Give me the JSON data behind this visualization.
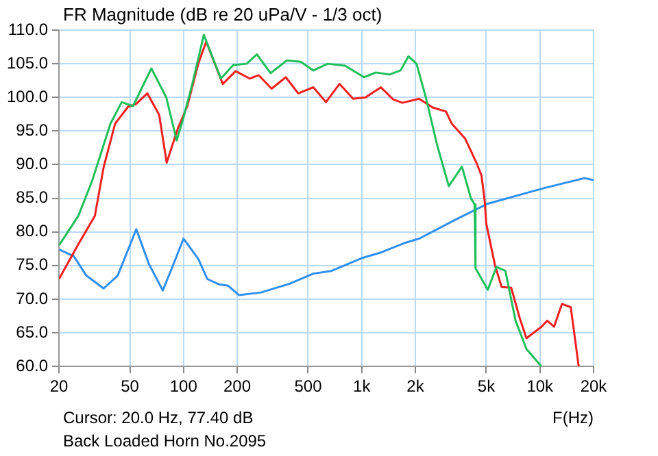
{
  "chart_data": {
    "type": "line",
    "title": "FR Magnitude (dB re 20 uPa/V - 1/3 oct)",
    "xlabel": "F(Hz)",
    "annotations": [
      "Cursor: 20.0 Hz, 77.40 dB",
      "Back Loaded Horn No.2095"
    ],
    "log": "x",
    "grid": true,
    "legend": false,
    "marker": "none",
    "line_style": "solid",
    "xlim": [
      20,
      20000
    ],
    "xticks": [
      20,
      50,
      100,
      200,
      500,
      {
        "value": 1000,
        "label": "1k"
      },
      {
        "value": 2000,
        "label": "2k"
      },
      {
        "value": 5000,
        "label": "5k"
      },
      {
        "value": 10000,
        "label": "10k"
      },
      {
        "value": 20000,
        "label": "20k"
      }
    ],
    "ylim": [
      60,
      110
    ],
    "yticks": [
      {
        "value": 60,
        "label": "60.0"
      },
      {
        "value": 65,
        "label": "65.0"
      },
      {
        "value": 70,
        "label": "70.0"
      },
      {
        "value": 75,
        "label": "75.0"
      },
      {
        "value": 80,
        "label": "80.0"
      },
      {
        "value": 85,
        "label": "85.0"
      },
      {
        "value": 90,
        "label": "90.0"
      },
      {
        "value": 95,
        "label": "95.0"
      },
      {
        "value": 100,
        "label": "100.0"
      },
      {
        "value": 105,
        "label": "105.0"
      },
      {
        "value": 110,
        "label": "110.0"
      }
    ],
    "series": [
      {
        "color": "#1fbf5a",
        "x": [
          20,
          25.7,
          30.7,
          38.9,
          45,
          52,
          66,
          80,
          91.5,
          100,
          112,
          130,
          162,
          190,
          226,
          258,
          308,
          380,
          455,
          535,
          644,
          808,
          1030,
          1200,
          1430,
          1650,
          1830,
          2030,
          2290,
          2650,
          3080,
          3650,
          4100,
          4300,
          4350,
          5100,
          5700,
          6400,
          7300,
          8400,
          10200
        ],
        "values": [
          78,
          82.4,
          87.6,
          96.1,
          99.3,
          98.7,
          104.3,
          100,
          93.6,
          97,
          102,
          109.3,
          102.8,
          104.8,
          105,
          106.4,
          103.6,
          105.5,
          105.3,
          104,
          105,
          104.7,
          103,
          103.7,
          103.4,
          104,
          106.1,
          105,
          100,
          92.9,
          86.8,
          89.7,
          85,
          84.1,
          74.6,
          71.4,
          74.8,
          74.2,
          66.8,
          62.6,
          60
        ]
      },
      {
        "color": "#f02020",
        "x": [
          20,
          25.7,
          31.8,
          35.6,
          41.3,
          48.8,
          54,
          62.6,
          73,
          80.4,
          93,
          105,
          121,
          134,
          166,
          196,
          235,
          264,
          312,
          375,
          440,
          535,
          630,
          750,
          895,
          1050,
          1280,
          1500,
          1690,
          2100,
          2500,
          2970,
          3200,
          3800,
          4400,
          4700,
          4900,
          5000,
          5600,
          6100,
          6900,
          7700,
          8400,
          10200,
          11000,
          12000,
          13300,
          14900,
          16500
        ],
        "values": [
          73,
          78.2,
          82.4,
          89.6,
          96.1,
          98.6,
          99,
          100.6,
          97.4,
          90.3,
          95.4,
          98.7,
          105,
          108.3,
          102,
          103.9,
          102.8,
          103.3,
          101.3,
          103,
          100.6,
          101.5,
          99.3,
          102,
          99.8,
          100,
          101.5,
          99.7,
          99.2,
          99.8,
          98.5,
          97.9,
          96.1,
          93.9,
          90.3,
          88.4,
          84.6,
          81.2,
          75,
          71.8,
          71.7,
          67.2,
          64.2,
          65.9,
          66.8,
          65.9,
          69.3,
          68.8,
          60
        ]
      },
      {
        "color": "#2f8ff0",
        "x": [
          20,
          24.2,
          28.5,
          35.6,
          42.7,
          54.3,
          64,
          76.5,
          86,
          100,
          121,
          136,
          158,
          178,
          205,
          272,
          394,
          535,
          675,
          1000,
          1300,
          1760,
          2100,
          3400,
          5100,
          10500,
          17800,
          20000
        ],
        "values": [
          77.4,
          76.4,
          73.5,
          71.6,
          73.5,
          80.4,
          75.2,
          71.3,
          74.6,
          79,
          76,
          73,
          72.2,
          72,
          70.6,
          71,
          72.3,
          73.8,
          74.2,
          76.1,
          77,
          78.4,
          79,
          81.9,
          84.2,
          86.5,
          88,
          87.7
        ]
      }
    ]
  }
}
